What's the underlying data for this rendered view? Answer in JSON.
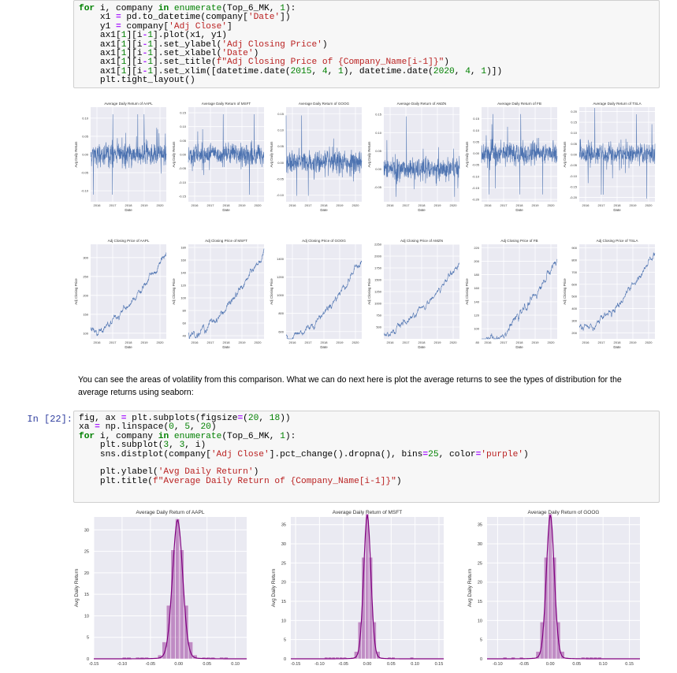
{
  "cell1": {
    "lines": [
      [
        [
          "kw",
          "for"
        ],
        [
          "t",
          " i, company "
        ],
        [
          "kw",
          "in"
        ],
        [
          "t",
          " "
        ],
        [
          "bi",
          "enumerate"
        ],
        [
          "t",
          "(Top_6_MK, "
        ],
        [
          "num",
          "1"
        ],
        [
          "t",
          "):"
        ]
      ],
      [
        [
          "t",
          "    x1 "
        ],
        [
          "op",
          "="
        ],
        [
          "t",
          " pd.to_datetime(company["
        ],
        [
          "str",
          "'Date'"
        ],
        [
          "t",
          "])"
        ]
      ],
      [
        [
          "t",
          "    y1 "
        ],
        [
          "op",
          "="
        ],
        [
          "t",
          " company["
        ],
        [
          "str",
          "'Adj Close'"
        ],
        [
          "t",
          "]"
        ]
      ],
      [
        [
          "t",
          "    ax1["
        ],
        [
          "num",
          "1"
        ],
        [
          "t",
          "][i"
        ],
        [
          "op",
          "-"
        ],
        [
          "num",
          "1"
        ],
        [
          "t",
          "].plot(x1, y1)"
        ]
      ],
      [
        [
          "t",
          "    ax1["
        ],
        [
          "num",
          "1"
        ],
        [
          "t",
          "][i"
        ],
        [
          "op",
          "-"
        ],
        [
          "num",
          "1"
        ],
        [
          "t",
          "].set_ylabel("
        ],
        [
          "str",
          "'Adj Closing Price'"
        ],
        [
          "t",
          ")"
        ]
      ],
      [
        [
          "t",
          "    ax1["
        ],
        [
          "num",
          "1"
        ],
        [
          "t",
          "][i"
        ],
        [
          "op",
          "-"
        ],
        [
          "num",
          "1"
        ],
        [
          "t",
          "].set_xlabel("
        ],
        [
          "str",
          "'Date'"
        ],
        [
          "t",
          ")"
        ]
      ],
      [
        [
          "t",
          "    ax1["
        ],
        [
          "num",
          "1"
        ],
        [
          "t",
          "][i"
        ],
        [
          "op",
          "-"
        ],
        [
          "num",
          "1"
        ],
        [
          "t",
          "].set_title("
        ],
        [
          "str",
          "f\"Adj Closing Price of {Company_Name[i-1]}\""
        ],
        [
          "t",
          ")"
        ]
      ],
      [
        [
          "t",
          "    ax1["
        ],
        [
          "num",
          "1"
        ],
        [
          "t",
          "][i"
        ],
        [
          "op",
          "-"
        ],
        [
          "num",
          "1"
        ],
        [
          "t",
          "].set_xlim([datetime.date("
        ],
        [
          "num",
          "2015"
        ],
        [
          "t",
          ", "
        ],
        [
          "num",
          "4"
        ],
        [
          "t",
          ", "
        ],
        [
          "num",
          "1"
        ],
        [
          "t",
          "), datetime.date("
        ],
        [
          "num",
          "2020"
        ],
        [
          "t",
          ", "
        ],
        [
          "num",
          "4"
        ],
        [
          "t",
          ", "
        ],
        [
          "num",
          "1"
        ],
        [
          "t",
          ")])"
        ]
      ],
      [
        [
          "t",
          "    plt.tight_layout()"
        ]
      ]
    ]
  },
  "grid_figure": {
    "returns_title_prefix": "Average Daily Return of",
    "prices_title_prefix": "Adj Closing Price of",
    "returns_ylabel": "Avg Daily Return",
    "prices_ylabel": "Adj Closing Price",
    "xlabel": "Date",
    "x_ticks": [
      "2016",
      "2017",
      "2018",
      "2019",
      "2020"
    ],
    "line_color": "#4c72b0",
    "bg_color": "#eaeaf2",
    "companies": [
      "AAPL",
      "MSFT",
      "GOOG",
      "AMZN",
      "FB",
      "TSLA"
    ],
    "returns_ylim": [
      [
        -0.13,
        0.13
      ],
      [
        -0.17,
        0.17
      ],
      [
        -0.12,
        0.17
      ],
      [
        -0.09,
        0.17
      ],
      [
        -0.21,
        0.2
      ],
      [
        -0.22,
        0.22
      ]
    ],
    "returns_yticks": [
      [
        "-0.10",
        "-0.05",
        "0.00",
        "0.05",
        "0.10"
      ],
      [
        "-0.15",
        "-0.10",
        "-0.05",
        "0.00",
        "0.05",
        "0.10",
        "0.15"
      ],
      [
        "-0.10",
        "-0.05",
        "0.00",
        "0.05",
        "0.10",
        "0.15"
      ],
      [
        "-0.05",
        "0.00",
        "0.05",
        "0.10",
        "0.15"
      ],
      [
        "-0.20",
        "-0.15",
        "-0.10",
        "-0.05",
        "0.00",
        "0.05",
        "0.10",
        "0.15"
      ],
      [
        "-0.20",
        "-0.15",
        "-0.10",
        "-0.05",
        "0.00",
        "0.05",
        "0.10",
        "0.15",
        "0.20"
      ]
    ],
    "prices_ylim": [
      [
        85,
        335
      ],
      [
        35,
        185
      ],
      [
        520,
        1560
      ],
      [
        250,
        2250
      ],
      [
        85,
        225
      ],
      [
        150,
        930
      ]
    ],
    "prices_yticks": [
      [
        "100",
        "150",
        "200",
        "250",
        "300"
      ],
      [
        "40",
        "60",
        "80",
        "100",
        "120",
        "140",
        "160",
        "180"
      ],
      [
        "600",
        "800",
        "1000",
        "1200",
        "1400"
      ],
      [
        "500",
        "750",
        "1000",
        "1250",
        "1500",
        "1750",
        "2000",
        "2250"
      ],
      [
        "80",
        "100",
        "120",
        "140",
        "160",
        "180",
        "200",
        "220"
      ],
      [
        "200",
        "300",
        "400",
        "500",
        "600",
        "700",
        "800",
        "900"
      ]
    ],
    "price_start": [
      105,
      43,
      540,
      380,
      80,
      240
    ],
    "price_end": [
      320,
      178,
      1450,
      1950,
      210,
      880
    ]
  },
  "markdown": "You can see the areas of volatility from this comparison. What we can do next here is plot the average returns to see the types of distribution for the average returns using seaborn:",
  "cell2": {
    "prompt": "In [22]:",
    "lines": [
      [
        [
          "t",
          "fig, ax "
        ],
        [
          "op",
          "="
        ],
        [
          "t",
          " plt.subplots(figsize"
        ],
        [
          "op",
          "="
        ],
        [
          "t",
          "("
        ],
        [
          "num",
          "20"
        ],
        [
          "t",
          ", "
        ],
        [
          "num",
          "18"
        ],
        [
          "t",
          "))"
        ]
      ],
      [
        [
          "t",
          "xa "
        ],
        [
          "op",
          "="
        ],
        [
          "t",
          " np.linspace("
        ],
        [
          "num",
          "0"
        ],
        [
          "t",
          ", "
        ],
        [
          "num",
          "5"
        ],
        [
          "t",
          ", "
        ],
        [
          "num",
          "20"
        ],
        [
          "t",
          ")"
        ]
      ],
      [
        [
          "kw",
          "for"
        ],
        [
          "t",
          " i, company "
        ],
        [
          "kw",
          "in"
        ],
        [
          "t",
          " "
        ],
        [
          "bi",
          "enumerate"
        ],
        [
          "t",
          "(Top_6_MK, "
        ],
        [
          "num",
          "1"
        ],
        [
          "t",
          "):"
        ]
      ],
      [
        [
          "t",
          "    plt.subplot("
        ],
        [
          "num",
          "3"
        ],
        [
          "t",
          ", "
        ],
        [
          "num",
          "3"
        ],
        [
          "t",
          ", i)"
        ]
      ],
      [
        [
          "t",
          "    sns.distplot(company["
        ],
        [
          "str",
          "'Adj Close'"
        ],
        [
          "t",
          "].pct_change().dropna(), bins"
        ],
        [
          "op",
          "="
        ],
        [
          "num",
          "25"
        ],
        [
          "t",
          ", color"
        ],
        [
          "op",
          "="
        ],
        [
          "str",
          "'purple'"
        ],
        [
          "t",
          ")"
        ]
      ],
      [
        [
          "t",
          ""
        ]
      ],
      [
        [
          "t",
          "    plt.ylabel("
        ],
        [
          "str",
          "'Avg Daily Return'"
        ],
        [
          "t",
          ")"
        ]
      ],
      [
        [
          "t",
          "    plt.title("
        ],
        [
          "str",
          "f\"Average Daily Return of {Company_Name[i-1]}\""
        ],
        [
          "t",
          ")"
        ]
      ]
    ]
  },
  "dist_figure": {
    "title_prefix": "Average Daily Return of",
    "ylabel": "Avg Daily Return",
    "hist_color": "#800080",
    "bg_color": "#eaeaf2",
    "companies": [
      "AAPL",
      "MSFT",
      "GOOG"
    ],
    "panels": [
      {
        "xlim": [
          -0.15,
          0.12
        ],
        "ylim": [
          0,
          33
        ],
        "xticks": [
          "-0.15",
          "-0.10",
          "-0.05",
          "0.00",
          "0.05",
          "0.10"
        ],
        "yticks": [
          "0",
          "5",
          "10",
          "15",
          "20",
          "25",
          "30"
        ],
        "peak": 31,
        "center": -0.002,
        "sd": 0.009
      },
      {
        "xlim": [
          -0.16,
          0.16
        ],
        "ylim": [
          0,
          37
        ],
        "xticks": [
          "-0.15",
          "-0.10",
          "-0.05",
          "0.00",
          "0.05",
          "0.10",
          "0.15"
        ],
        "yticks": [
          "0",
          "5",
          "10",
          "15",
          "20",
          "25",
          "30",
          "35"
        ],
        "peak": 36,
        "center": 0.0,
        "sd": 0.0075
      },
      {
        "xlim": [
          -0.12,
          0.17
        ],
        "ylim": [
          0,
          37
        ],
        "xticks": [
          "-0.10",
          "-0.05",
          "0.00",
          "0.05",
          "0.10",
          "0.15"
        ],
        "yticks": [
          "0",
          "5",
          "10",
          "15",
          "20",
          "25",
          "30",
          "35"
        ],
        "peak": 36,
        "center": 0.0,
        "sd": 0.0075
      }
    ]
  }
}
